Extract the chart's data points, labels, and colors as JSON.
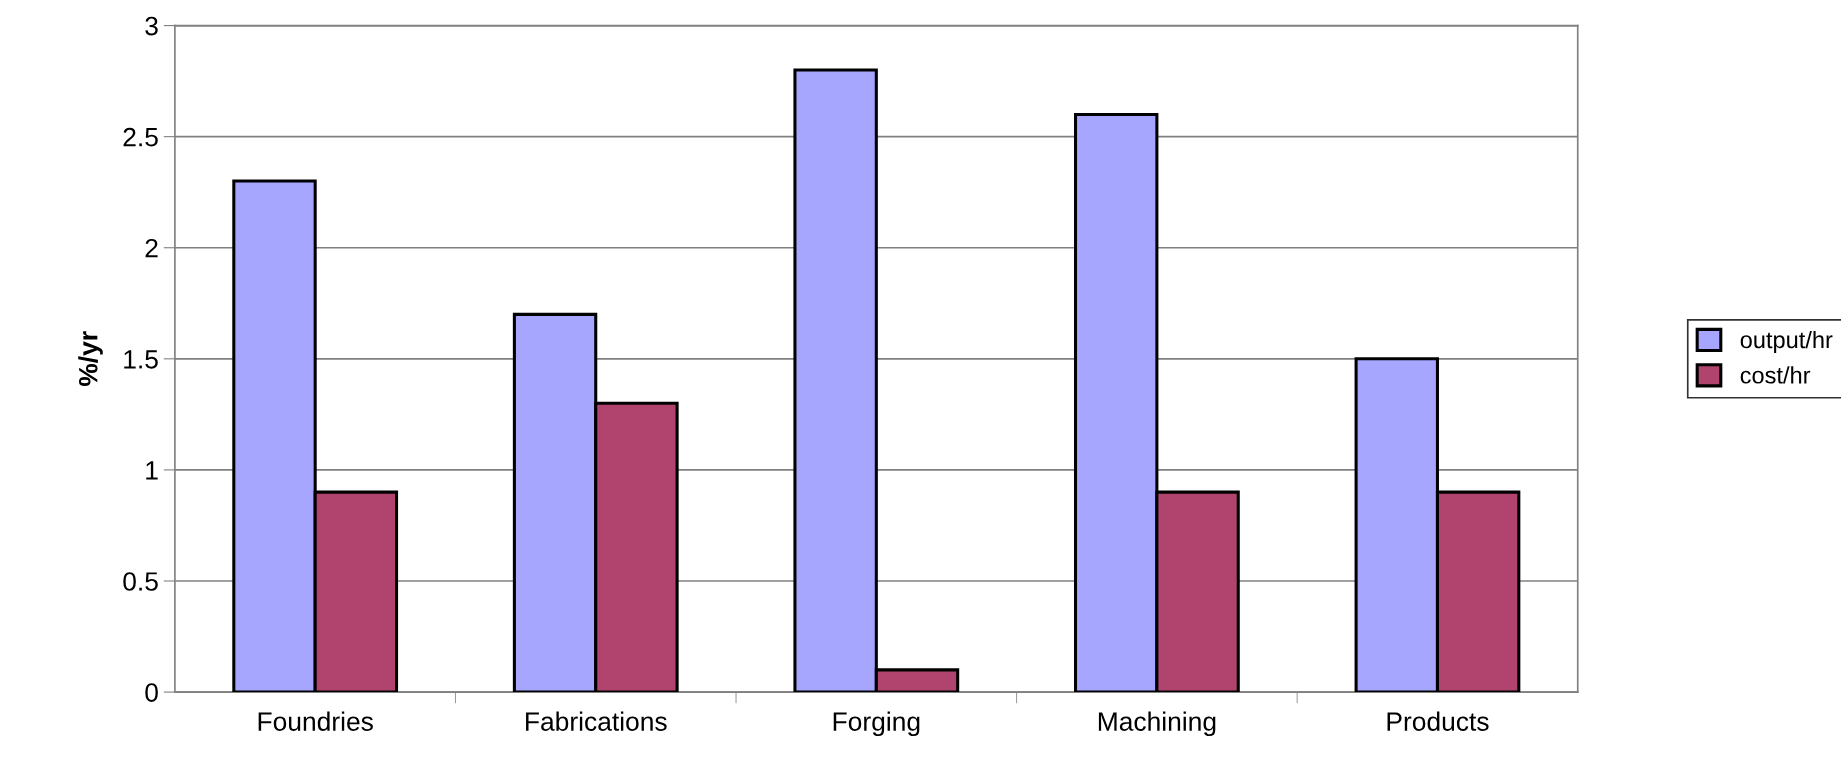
{
  "chart_data": {
    "type": "bar",
    "ylabel": "%/yr",
    "categories": [
      "Foundries",
      "Fabrications",
      "Forging",
      "Machining",
      "Products"
    ],
    "series": [
      {
        "name": "output/hr",
        "color": "#a6a6ff",
        "values": [
          2.3,
          1.7,
          2.8,
          2.6,
          1.5
        ]
      },
      {
        "name": "cost/hr",
        "color": "#b0446f",
        "values": [
          0.9,
          1.3,
          0.1,
          0.9,
          0.9
        ]
      }
    ],
    "ylim": [
      0,
      3
    ],
    "yticks": [
      0,
      0.5,
      1,
      1.5,
      2,
      2.5,
      3
    ],
    "grid": "y",
    "legend": "right"
  }
}
